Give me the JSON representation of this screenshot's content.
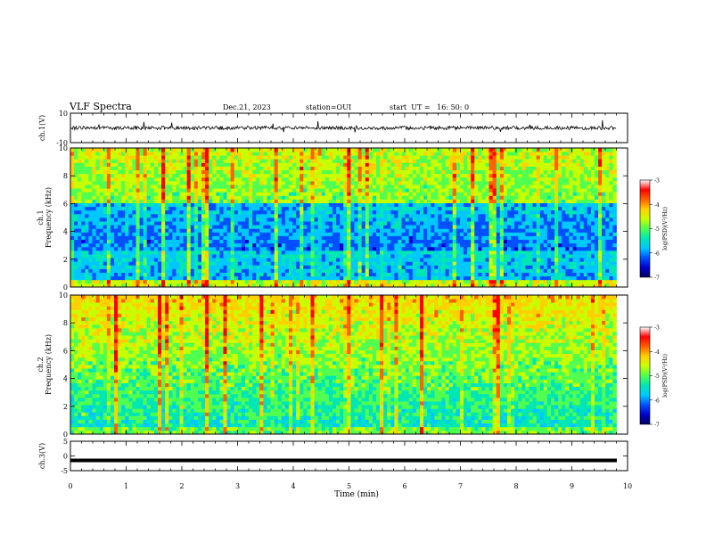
{
  "header": {
    "title": "VLF Spectra",
    "date": "Dec.21, 2023",
    "station": "station=OUI",
    "start": "start  UT =   16: 50: 0"
  },
  "chart_data": [
    {
      "id": "ch1-waveform",
      "type": "line",
      "ylabel": "ch.1(V)",
      "ylim": [
        -10,
        10
      ],
      "yticks": [
        "10",
        "-10"
      ],
      "baseline": 0,
      "xlim": [
        0,
        10
      ]
    },
    {
      "id": "ch1-spectrogram",
      "type": "heatmap",
      "ylabel": "ch.1\nFrequency (kHz)",
      "ylim": [
        0,
        10
      ],
      "yticks": [
        "10",
        "8",
        "6",
        "4",
        "2",
        "0"
      ],
      "xlim": [
        0,
        10
      ],
      "data_end_min": 9.8,
      "colorbar": {
        "label": "log(PSD)(V²/Hz)",
        "range": [
          -7,
          -3
        ],
        "ticks": [
          "-3",
          "-4",
          "-5",
          "-6",
          "-7"
        ]
      }
    },
    {
      "id": "ch2-spectrogram",
      "type": "heatmap",
      "ylabel": "ch.2\nFrequency (kHz)",
      "ylim": [
        0,
        10
      ],
      "yticks": [
        "10",
        "8",
        "6",
        "4",
        "2",
        "0"
      ],
      "xlim": [
        0,
        10
      ],
      "data_end_min": 9.8,
      "colorbar": {
        "label": "log(PSD)(V²/Hz)",
        "range": [
          -7,
          -3
        ],
        "ticks": [
          "-3",
          "-4",
          "-5",
          "-6",
          "-7"
        ]
      }
    },
    {
      "id": "ch3-waveform",
      "type": "line",
      "ylabel": "ch.3(V)",
      "ylim": [
        -5,
        5
      ],
      "yticks": [
        "5",
        "0",
        "-5"
      ],
      "baseline": -1.5,
      "xlim": [
        0,
        10
      ]
    }
  ],
  "xaxis": {
    "label": "Time (min)",
    "ticks": [
      "0",
      "1",
      "2",
      "3",
      "4",
      "5",
      "6",
      "7",
      "8",
      "9",
      "10"
    ]
  },
  "colormap": [
    "#000060",
    "#0000cc",
    "#0050ff",
    "#00c8ff",
    "#00e6b4",
    "#50ff50",
    "#c8ff00",
    "#ffd000",
    "#ff6000",
    "#ff0000",
    "#ffffff"
  ]
}
